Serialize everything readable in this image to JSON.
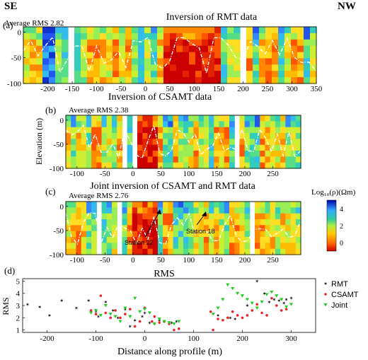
{
  "corner_labels": {
    "left": "SE",
    "right": "NW"
  },
  "colorbar": {
    "label": "Log₁₀(ρ)(Ωm)",
    "ticks": [
      4,
      2,
      0
    ],
    "stops": [
      "#cc0000",
      "#ff6600",
      "#ffcc00",
      "#aaee44",
      "#33cc99",
      "#33aaff",
      "#0000aa"
    ]
  },
  "panels": [
    {
      "letter": "(a)",
      "title": "Inversion of RMT data",
      "rms": "Average RMS 2.82",
      "xticks": [
        -200,
        -150,
        -100,
        -50,
        0,
        50,
        100,
        150,
        200,
        250,
        300,
        350
      ],
      "yticks": [
        0,
        -50,
        -100
      ],
      "xlim": [
        -250,
        350
      ],
      "ylim": [
        -100,
        10
      ]
    },
    {
      "letter": "(b)",
      "title": "Inversion of CSAMT data",
      "rms": "Average RMS 2.38",
      "xticks": [
        -100,
        -50,
        0,
        50,
        100,
        150,
        200,
        250
      ],
      "yticks": [
        0,
        -50,
        -100
      ],
      "xlim": [
        -120,
        300
      ],
      "ylim": [
        -100,
        10
      ]
    },
    {
      "letter": "(c)",
      "title": "Joint inversion of CSAMT and RMT data",
      "rms": "Average RMS 2.76",
      "xticks": [
        -100,
        -50,
        0,
        50,
        100,
        150,
        200,
        250
      ],
      "yticks": [
        0,
        -50,
        -100
      ],
      "xlim": [
        -120,
        300
      ],
      "ylim": [
        -100,
        10
      ],
      "annotations": [
        "Station 22",
        "Station 18"
      ]
    }
  ],
  "elevation_label": "Elevation (m)",
  "chart_data": {
    "type": "scatter",
    "panel_letter": "(d)",
    "title": "RMS",
    "xlabel": "Distance along profile (m)",
    "ylabel": "RMS",
    "xlim": [
      -250,
      350
    ],
    "ylim": [
      0.8,
      5.2
    ],
    "xticks": [
      -200,
      -100,
      0,
      100,
      200,
      300
    ],
    "yticks": [
      1,
      2,
      3,
      4,
      5
    ],
    "legend_position": "right",
    "series": [
      {
        "name": "RMT",
        "color": "#2233ee",
        "marker": "star",
        "x": [
          -240,
          -215,
          -195,
          -170,
          -140,
          -115,
          -100,
          -95,
          -80,
          -65,
          -55,
          -40,
          -30,
          -20,
          -5,
          0,
          10,
          20,
          30,
          40,
          55,
          65,
          150,
          175,
          185,
          210,
          230,
          245,
          255,
          265,
          275,
          285,
          290,
          300
        ],
        "y": [
          3.1,
          2.9,
          2.2,
          3.4,
          2.8,
          3.4,
          2.5,
          2.1,
          3.3,
          2.6,
          2.0,
          2.7,
          1.3,
          1.8,
          2.1,
          2.4,
          1.6,
          1.5,
          1.8,
          1.7,
          1.6,
          1.7,
          2.2,
          2.0,
          1.9,
          3.0,
          5.0,
          4.0,
          3.3,
          3.5,
          3.4,
          3.2,
          3.5,
          3.6
        ]
      },
      {
        "name": "CSAMT",
        "color": "#ee2222",
        "marker": "dot",
        "x": [
          -110,
          -100,
          -90,
          -80,
          -70,
          -60,
          -50,
          -40,
          -30,
          -20,
          -10,
          0,
          15,
          20,
          30,
          40,
          50,
          60,
          70,
          135,
          140,
          150,
          160,
          170,
          180,
          190,
          200,
          210,
          220,
          230,
          240,
          250,
          260,
          270,
          280,
          290
        ],
        "y": [
          2.6,
          2.3,
          3.8,
          2.4,
          2.0,
          2.6,
          2.0,
          2.3,
          2.7,
          1.3,
          1.7,
          2.8,
          1.7,
          2.1,
          1.6,
          1.7,
          1.5,
          1.0,
          1.1,
          2.5,
          1.0,
          1.9,
          1.8,
          2.0,
          2.5,
          2.2,
          2.0,
          2.2,
          2.6,
          3.1,
          2.4,
          2.2,
          3.6,
          3.0,
          2.6,
          2.7
        ]
      },
      {
        "name": "Joint",
        "color": "#22cc22",
        "marker": "triangle-down",
        "x": [
          -110,
          -100,
          -90,
          -80,
          -70,
          -60,
          -50,
          -40,
          -30,
          -20,
          -10,
          0,
          10,
          20,
          30,
          40,
          50,
          60,
          70,
          140,
          150,
          160,
          170,
          180,
          190,
          200,
          210,
          220,
          230,
          240,
          250,
          260,
          270,
          280,
          290,
          300
        ],
        "y": [
          2.4,
          2.6,
          2.2,
          3.0,
          2.3,
          2.1,
          1.7,
          2.8,
          2.1,
          3.6,
          2.5,
          2.7,
          2.4,
          1.5,
          1.9,
          1.7,
          1.6,
          1.5,
          1.7,
          2.3,
          2.8,
          3.5,
          4.7,
          4.4,
          4.0,
          3.8,
          3.5,
          3.2,
          2.8,
          3.3,
          3.9,
          4.1,
          3.8,
          3.5,
          2.9,
          3.1
        ]
      }
    ]
  }
}
